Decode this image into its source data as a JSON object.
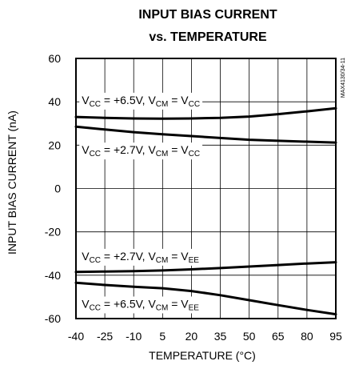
{
  "chart_data": {
    "type": "line",
    "title_lines": [
      "INPUT BIAS CURRENT",
      "vs. TEMPERATURE"
    ],
    "xlabel": "TEMPERATURE (°C)",
    "ylabel": "INPUT BIAS CURRENT (nA)",
    "xlim": [
      -40,
      95
    ],
    "ylim": [
      -60,
      60
    ],
    "x_ticks": [
      -40,
      -25,
      -10,
      5,
      20,
      35,
      50,
      65,
      80,
      95
    ],
    "y_ticks": [
      60,
      40,
      20,
      0,
      -20,
      -40,
      -60
    ],
    "grid": true,
    "watermark": "MAX4130/34-11",
    "line_color": "#000000",
    "x": [
      -40,
      -25,
      -10,
      5,
      20,
      35,
      50,
      65,
      80,
      95
    ],
    "series": [
      {
        "values": [
          33,
          32.6,
          32.3,
          32.2,
          32.3,
          32.6,
          33.2,
          34.3,
          35.6,
          37
        ]
      },
      {
        "values": [
          28.5,
          27.2,
          26,
          25,
          24.2,
          23.3,
          22.5,
          22,
          21.6,
          21.2
        ]
      },
      {
        "values": [
          -38.5,
          -38.3,
          -38.1,
          -37.8,
          -37.3,
          -36.7,
          -36,
          -35.3,
          -34.6,
          -34
        ]
      },
      {
        "values": [
          -43.5,
          -44.5,
          -45.3,
          -46,
          -47.3,
          -49.2,
          -51.5,
          -53.8,
          -56,
          -58
        ]
      }
    ],
    "annotations": [
      {
        "parts": [
          {
            "t": "V",
            "sub": false
          },
          {
            "t": "CC",
            "sub": true
          },
          {
            "t": " = +6.5V, V",
            "sub": false
          },
          {
            "t": "CM",
            "sub": true
          },
          {
            "t": " = V",
            "sub": false
          },
          {
            "t": "CC",
            "sub": true
          }
        ],
        "x": -37,
        "y": 39
      },
      {
        "parts": [
          {
            "t": "V",
            "sub": false
          },
          {
            "t": "CC",
            "sub": true
          },
          {
            "t": " = +2.7V, V",
            "sub": false
          },
          {
            "t": "CM",
            "sub": true
          },
          {
            "t": " = V",
            "sub": false
          },
          {
            "t": "CC",
            "sub": true
          }
        ],
        "x": -37,
        "y": 16
      },
      {
        "parts": [
          {
            "t": "V",
            "sub": false
          },
          {
            "t": "CC",
            "sub": true
          },
          {
            "t": " = +2.7V, V",
            "sub": false
          },
          {
            "t": "CM",
            "sub": true
          },
          {
            "t": " = V",
            "sub": false
          },
          {
            "t": "EE",
            "sub": true
          }
        ],
        "x": -37,
        "y": -33
      },
      {
        "parts": [
          {
            "t": "V",
            "sub": false
          },
          {
            "t": "CC",
            "sub": true
          },
          {
            "t": " = +6.5V, V",
            "sub": false
          },
          {
            "t": "CM",
            "sub": true
          },
          {
            "t": " = V",
            "sub": false
          },
          {
            "t": "EE",
            "sub": true
          }
        ],
        "x": -37,
        "y": -55
      }
    ]
  }
}
